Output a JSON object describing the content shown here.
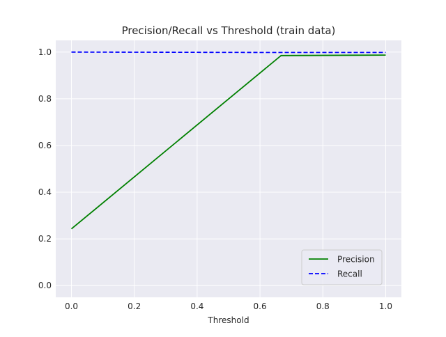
{
  "chart_data": {
    "type": "line",
    "title": "Precision/Recall vs Threshold (train data)",
    "xlabel": "Threshold",
    "ylabel": "",
    "xlim": [
      -0.05,
      1.05
    ],
    "ylim": [
      -0.05,
      1.05
    ],
    "xticks": [
      0.0,
      0.2,
      0.4,
      0.6,
      0.8,
      1.0
    ],
    "xtick_labels": [
      "0.0",
      "0.2",
      "0.4",
      "0.6",
      "0.8",
      "1.0"
    ],
    "yticks": [
      0.0,
      0.2,
      0.4,
      0.6,
      0.8,
      1.0
    ],
    "ytick_labels": [
      "0.0",
      "0.2",
      "0.4",
      "0.6",
      "0.8",
      "1.0"
    ],
    "grid": true,
    "legend_position": "lower-right",
    "series": [
      {
        "name": "Precision",
        "color": "#008000",
        "style": "solid",
        "x": [
          0.0,
          0.667,
          1.0
        ],
        "y": [
          0.243,
          0.985,
          0.987
        ]
      },
      {
        "name": "Recall",
        "color": "#0000ff",
        "style": "dashed",
        "x": [
          0.0,
          0.667,
          1.0
        ],
        "y": [
          1.0,
          0.998,
          0.998
        ]
      }
    ]
  }
}
